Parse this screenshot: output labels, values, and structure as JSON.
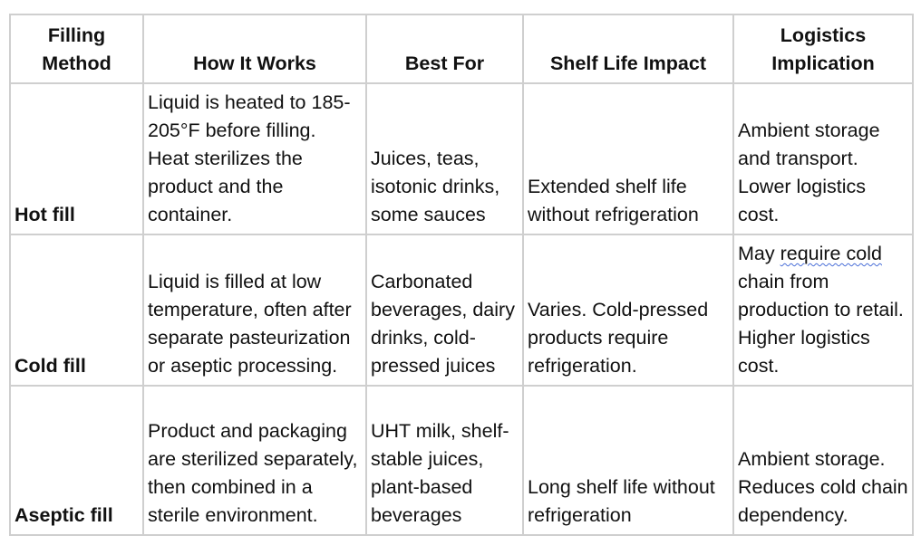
{
  "table": {
    "headers": [
      "Filling Method",
      "How It Works",
      "Best For",
      "Shelf Life Impact",
      "Logistics Implication"
    ],
    "rows": [
      {
        "method": "Hot fill",
        "how": "Liquid is heated to 185-205°F before filling. Heat sterilizes the product and the container.",
        "best_for": "Juices, teas, isotonic drinks, some sauces",
        "shelf_life": "Extended shelf life without refrigeration",
        "logistics": "Ambient storage and transport. Lower logistics cost."
      },
      {
        "method": "Cold fill",
        "how": "Liquid is filled at low temperature, often after separate pasteurization or aseptic processing.",
        "best_for": "Carbonated beverages, dairy drinks, cold-pressed juices",
        "shelf_life": "Varies. Cold-pressed products require refrigeration.",
        "logistics_pre": "May ",
        "logistics_flagged": "require cold",
        "logistics_post": " chain from production to retail. Higher logistics cost."
      },
      {
        "method": "Aseptic fill",
        "how": "Product and packaging are sterilized separately, then combined in a sterile environment.",
        "best_for": "UHT milk, shelf-stable juices, plant-based beverages",
        "shelf_life": "Long shelf life without refrigeration",
        "logistics": "Ambient storage. Reduces cold chain dependency."
      }
    ]
  }
}
